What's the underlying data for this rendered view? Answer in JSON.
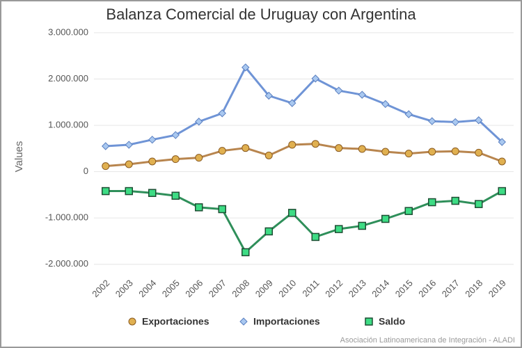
{
  "chart_data": {
    "type": "line",
    "title": "Balanza Comercial de Uruguay con Argentina",
    "y_label": "Values",
    "credits": "Asociación Latinoamericana de Integración - ALADI",
    "categories": [
      "2002",
      "2003",
      "2004",
      "2005",
      "2006",
      "2007",
      "2008",
      "2009",
      "2010",
      "2011",
      "2012",
      "2013",
      "2014",
      "2015",
      "2016",
      "2017",
      "2018",
      "2019"
    ],
    "ylim": [
      -2200000,
      3000000
    ],
    "yticks": [
      {
        "value": -2000000,
        "label": "-2.000.000"
      },
      {
        "value": -1000000,
        "label": "-1.000.000"
      },
      0,
      {
        "value": 1000000,
        "label": "1.000.000"
      },
      {
        "value": 2000000,
        "label": "2.000.000"
      },
      {
        "value": 3000000,
        "label": "3.000.000"
      }
    ],
    "grid": true,
    "legend": "bottom",
    "series": [
      {
        "name": "Exportaciones",
        "color": "#b8854e",
        "marker": "circle",
        "values": [
          120000,
          160000,
          220000,
          270000,
          300000,
          450000,
          510000,
          350000,
          580000,
          600000,
          510000,
          490000,
          430000,
          390000,
          430000,
          440000,
          410000,
          220000
        ]
      },
      {
        "name": "Importaciones",
        "color": "#6f94d6",
        "marker": "diamond",
        "values": [
          550000,
          580000,
          690000,
          790000,
          1080000,
          1260000,
          2250000,
          1640000,
          1480000,
          2010000,
          1750000,
          1660000,
          1460000,
          1240000,
          1090000,
          1070000,
          1110000,
          640000
        ]
      },
      {
        "name": "Saldo",
        "color": "#2f8f5a",
        "marker": "square",
        "values": [
          -420000,
          -420000,
          -460000,
          -520000,
          -770000,
          -810000,
          -1740000,
          -1290000,
          -890000,
          -1410000,
          -1240000,
          -1170000,
          -1020000,
          -850000,
          -660000,
          -630000,
          -700000,
          -420000
        ]
      }
    ]
  }
}
